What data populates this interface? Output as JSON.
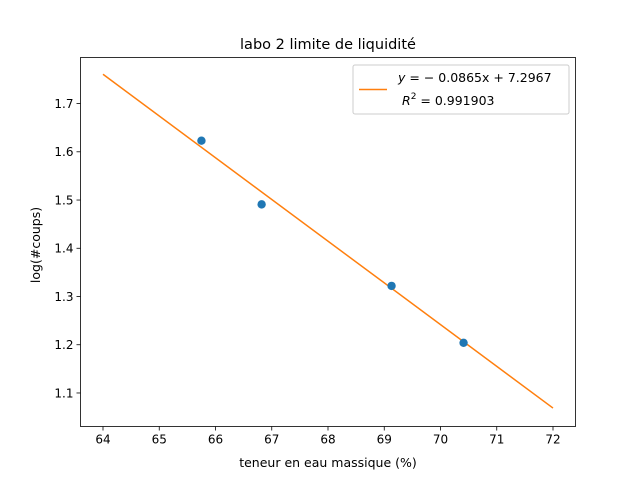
{
  "chart_data": {
    "type": "scatter",
    "title": "labo 2 limite de liquidité",
    "xlabel": "teneur en eau massique (%)",
    "ylabel": "log(#coups)",
    "xlim": [
      63.6,
      72.4
    ],
    "ylim": [
      1.0305,
      1.7955
    ],
    "xticks": [
      64,
      65,
      66,
      67,
      68,
      69,
      70,
      71,
      72
    ],
    "yticks": [
      1.1,
      1.2,
      1.3,
      1.4,
      1.5,
      1.6,
      1.7
    ],
    "grid": false,
    "legend_position": "top-right",
    "series": [
      {
        "kind": "scatter",
        "color": "#1f77b4",
        "points": [
          {
            "x": 65.75,
            "y": 1.623
          },
          {
            "x": 66.82,
            "y": 1.491
          },
          {
            "x": 69.13,
            "y": 1.322
          },
          {
            "x": 70.41,
            "y": 1.204
          }
        ]
      },
      {
        "kind": "line",
        "color": "#ff7f0e",
        "slope": -0.0865,
        "intercept": 7.2967,
        "x_range": [
          64,
          72
        ],
        "legend_line1_prefix": "y = ",
        "legend_line1_value": "− 0.0865x + 7.2967",
        "legend_line2_prefix": "R",
        "legend_line2_sup": "2",
        "legend_line2_value": " = 0.991903"
      }
    ]
  }
}
